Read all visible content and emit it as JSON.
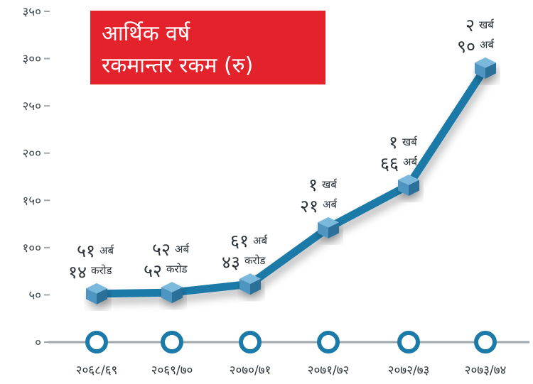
{
  "chart_data": {
    "type": "line",
    "title_line1": "आर्थिक वर्ष",
    "title_line2": "रकमान्तर रकम (रु)",
    "categories": [
      "२०६८/६९",
      "२०६९/७०",
      "२०७०/७१",
      "२०७१/७२",
      "२०७२/७३",
      "२०७३/७४"
    ],
    "values": [
      51.14,
      52.52,
      61.43,
      121,
      166,
      290
    ],
    "ylim": [
      0,
      350
    ],
    "yticks": [
      "०",
      "५०",
      "१००",
      "१५०",
      "२००",
      "२५०",
      "३००",
      "३५०"
    ],
    "point_labels": [
      {
        "l1_num": "५१",
        "l1_unit": "अर्ब",
        "l2_num": "१४",
        "l2_unit": "करोड"
      },
      {
        "l1_num": "५२",
        "l1_unit": "अर्ब",
        "l2_num": "५२",
        "l2_unit": "करोड"
      },
      {
        "l1_num": "६१",
        "l1_unit": "अर्ब",
        "l2_num": "४३",
        "l2_unit": "करोड"
      },
      {
        "l1_num": "१",
        "l1_unit": "खर्ब",
        "l2_num": "२१",
        "l2_unit": "अर्ब"
      },
      {
        "l1_num": "१",
        "l1_unit": "खर्ब",
        "l2_num": "६६",
        "l2_unit": "अर्ब"
      },
      {
        "l1_num": "२",
        "l1_unit": "खर्ब",
        "l2_num": "९०",
        "l2_unit": "अर्ब"
      }
    ],
    "grid": false,
    "colors": {
      "line": "#1b7aa8",
      "marker_top": "#7ab8dc",
      "marker_side": "#2b6f99",
      "ring": "#1b7aa8",
      "title_bg": "#e4222b",
      "axis": "#9ea7ad"
    }
  }
}
